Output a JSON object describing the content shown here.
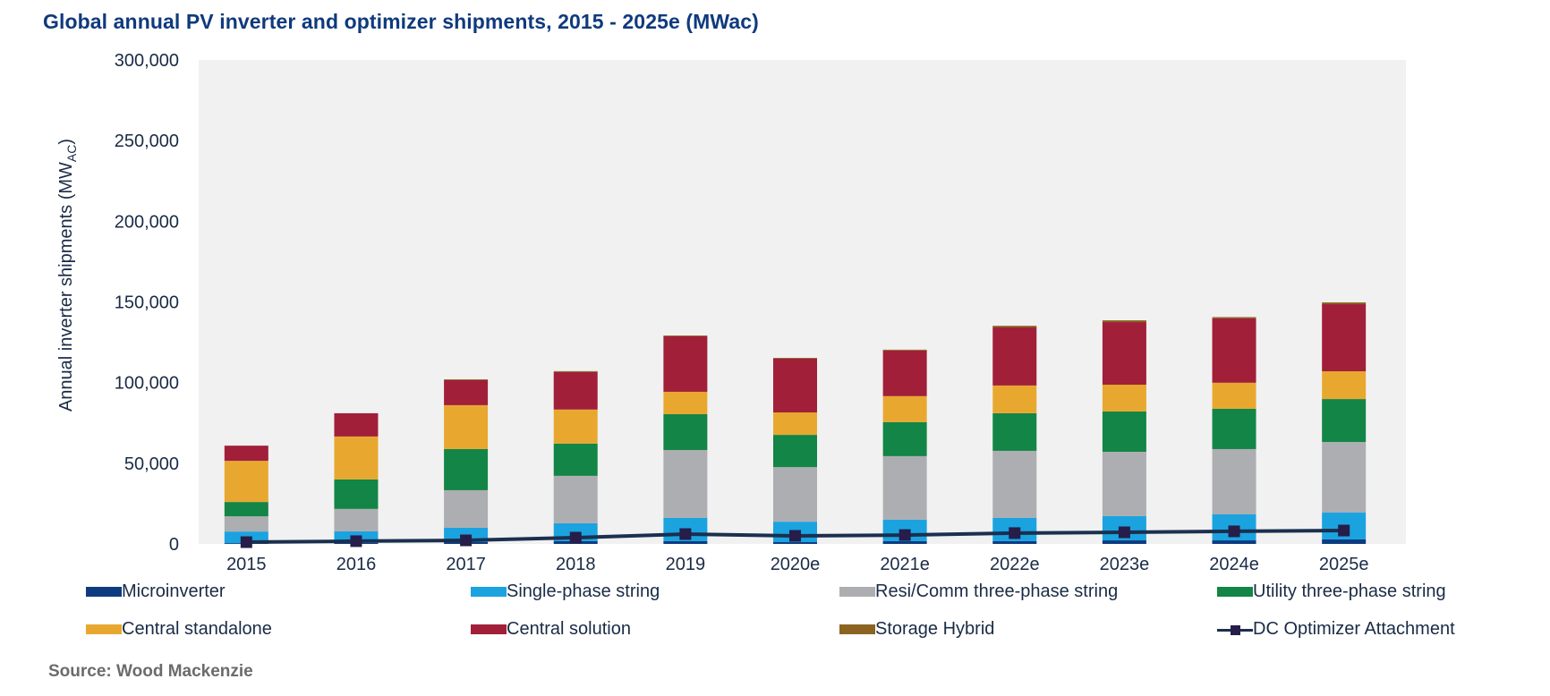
{
  "title": "Global annual PV inverter and optimizer shipments, 2015 - 2025e (MWac)",
  "source": "Source: Wood Mackenzie",
  "chart_data": {
    "type": "bar",
    "stacked": true,
    "title": "Global annual PV inverter and optimizer shipments, 2015 - 2025e (MWac)",
    "xlabel": "",
    "ylabel": "Annual inverter shipments (MWAC)",
    "ylabel_main": "Annual inverter shipments (MW",
    "ylabel_sub": "AC",
    "ylabel_close": ")",
    "ylim": [
      0,
      300000
    ],
    "yticks": [
      0,
      50000,
      100000,
      150000,
      200000,
      250000,
      300000
    ],
    "ytick_labels": [
      "0",
      "50,000",
      "100,000",
      "150,000",
      "200,000",
      "250,000",
      "300,000"
    ],
    "categories": [
      "2015",
      "2016",
      "2017",
      "2018",
      "2019",
      "2020e",
      "2021e",
      "2022e",
      "2023e",
      "2024e",
      "2025e"
    ],
    "grid": false,
    "legend_position": "bottom",
    "series": [
      {
        "name": "Microinverter",
        "color": "#0d3b80",
        "values": [
          500,
          600,
          1100,
          1700,
          1700,
          1100,
          1700,
          1700,
          2200,
          2200,
          2800
        ]
      },
      {
        "name": "Single-phase string",
        "color": "#1ba3e0",
        "values": [
          7200,
          7200,
          8900,
          11100,
          14400,
          12700,
          13300,
          14400,
          15000,
          16100,
          16600
        ]
      },
      {
        "name": "Resi/Comm three-phase string",
        "color": "#adaeb1",
        "values": [
          9400,
          13900,
          23300,
          29400,
          42100,
          33800,
          39400,
          41600,
          39900,
          40500,
          43800
        ]
      },
      {
        "name": "Utility three-phase string",
        "color": "#138546",
        "values": [
          8900,
          18300,
          25500,
          20000,
          22200,
          20000,
          21100,
          23300,
          25000,
          25000,
          26600
        ]
      },
      {
        "name": "Central standalone",
        "color": "#e8a82f",
        "values": [
          25500,
          26600,
          27200,
          21100,
          13900,
          13900,
          16100,
          17200,
          16600,
          16100,
          17200
        ]
      },
      {
        "name": "Central solution",
        "color": "#a11f39",
        "values": [
          9400,
          14400,
          15500,
          23300,
          34400,
          33300,
          28300,
          36000,
          38800,
          39900,
          41600
        ]
      },
      {
        "name": "Storage Hybrid",
        "color": "#8a6420",
        "values": [
          0,
          0,
          500,
          500,
          500,
          500,
          500,
          1000,
          1100,
          800,
          1100
        ]
      }
    ],
    "line_series": {
      "name": "DC Optimizer Attachment",
      "color": "#1b2f4e",
      "marker_color": "#261d4a",
      "values": [
        1100,
        1700,
        2200,
        3900,
        6100,
        5000,
        5500,
        6700,
        7200,
        7800,
        8300
      ]
    }
  },
  "legend": [
    {
      "label": "Microinverter",
      "color": "#0d3b80",
      "kind": "box"
    },
    {
      "label": "Single-phase string",
      "color": "#1ba3e0",
      "kind": "box"
    },
    {
      "label": "Resi/Comm three-phase string",
      "color": "#adaeb1",
      "kind": "box"
    },
    {
      "label": "Utility three-phase string",
      "color": "#138546",
      "kind": "box"
    },
    {
      "label": "Central standalone",
      "color": "#e8a82f",
      "kind": "box"
    },
    {
      "label": "Central solution",
      "color": "#a11f39",
      "kind": "box"
    },
    {
      "label": "Storage Hybrid",
      "color": "#8a6420",
      "kind": "box"
    },
    {
      "label": "DC Optimizer Attachment",
      "color": "#1b2f4e",
      "kind": "line"
    }
  ],
  "plot_background": "#f1f1f1"
}
